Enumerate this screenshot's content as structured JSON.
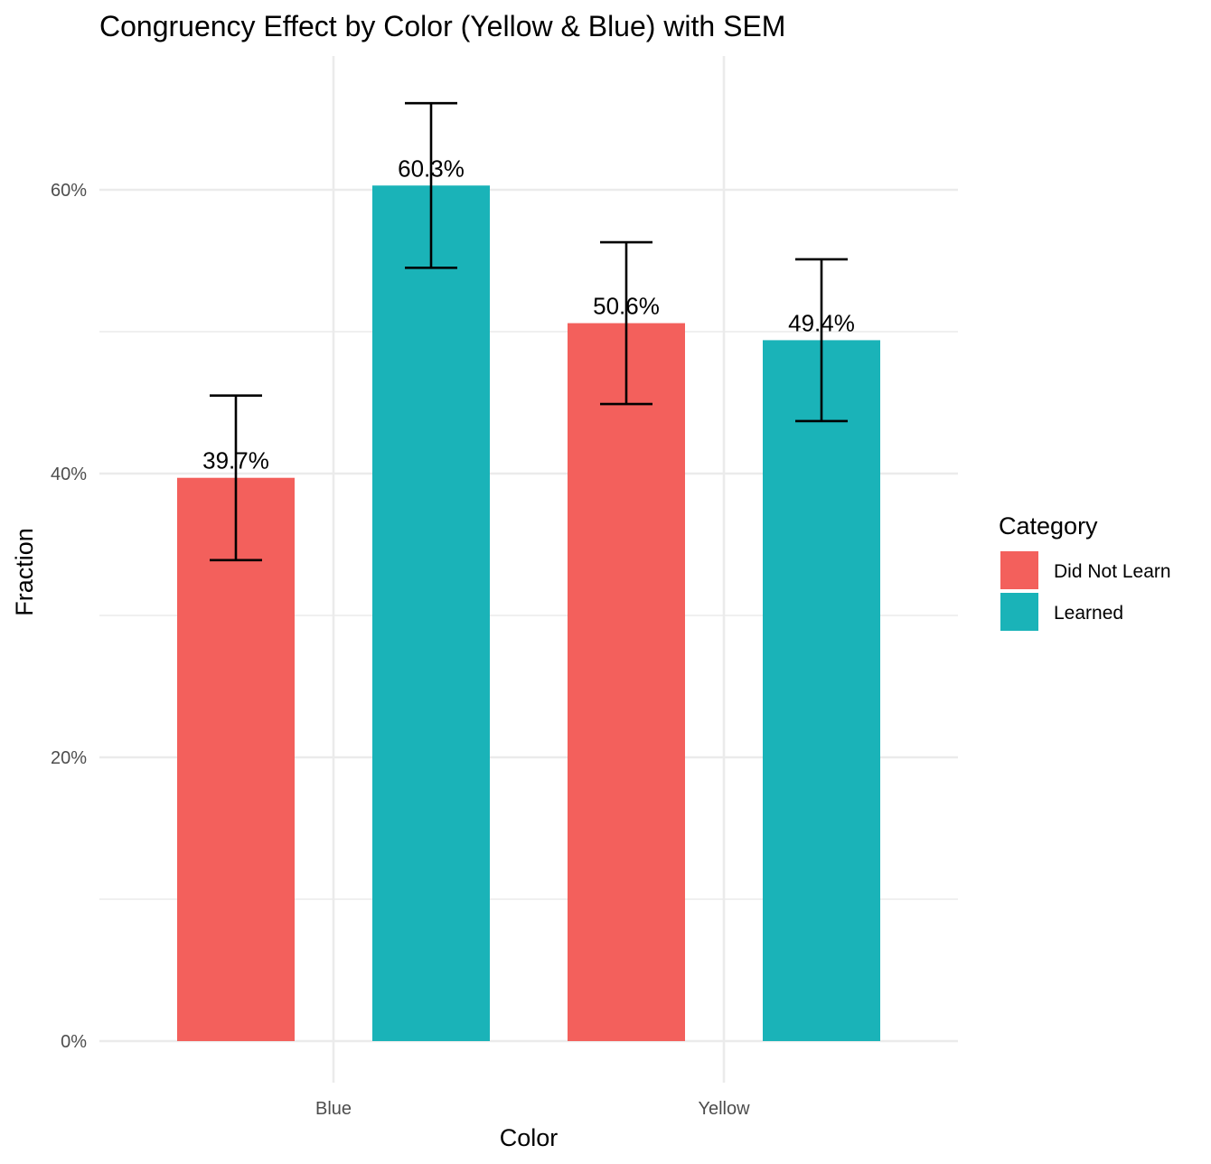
{
  "chart_data": {
    "type": "bar",
    "title": "Congruency Effect by Color (Yellow & Blue) with SEM",
    "xlabel": "Color",
    "ylabel": "Fraction",
    "categories": [
      "Blue",
      "Yellow"
    ],
    "series": [
      {
        "name": "Did Not Learn",
        "color": "#F3605C",
        "values": [
          0.397,
          0.506
        ],
        "labels": [
          "39.7%",
          "50.6%"
        ],
        "err_low": [
          0.339,
          0.449
        ],
        "err_high": [
          0.455,
          0.563
        ]
      },
      {
        "name": "Learned",
        "color": "#1AB3B8",
        "values": [
          0.603,
          0.494
        ],
        "labels": [
          "60.3%",
          "49.4%"
        ],
        "err_low": [
          0.545,
          0.437
        ],
        "err_high": [
          0.661,
          0.551
        ]
      }
    ],
    "ylim": [
      -0.02,
      0.7
    ],
    "y_ticks": [
      0,
      0.2,
      0.4,
      0.6
    ],
    "y_tick_labels": [
      "0%",
      "20%",
      "40%",
      "60%"
    ],
    "y_minor_ticks": [
      0.1,
      0.3,
      0.5
    ],
    "grid": true,
    "legend": {
      "title": "Category",
      "placement": "right"
    }
  }
}
